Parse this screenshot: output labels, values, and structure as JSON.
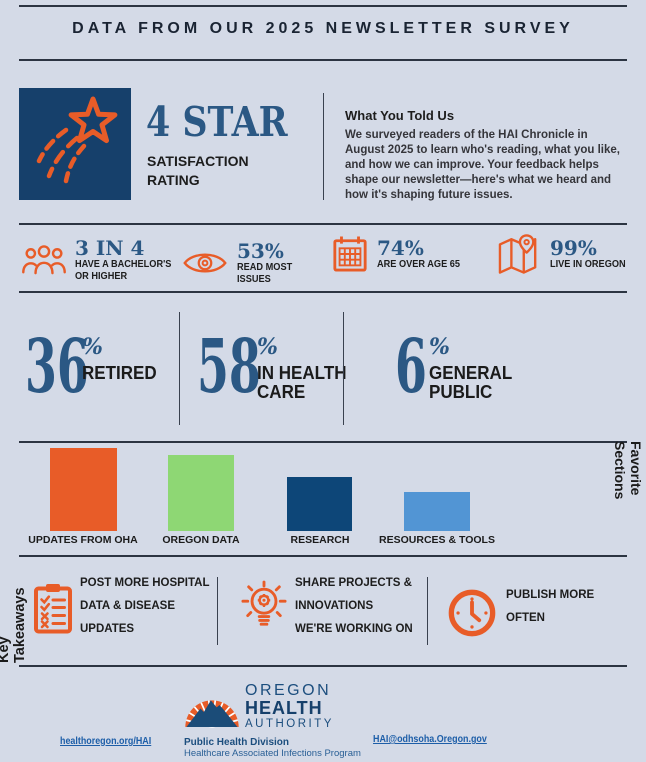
{
  "header": {
    "title": "DATA FROM OUR 2025 NEWSLETTER SURVEY"
  },
  "hero": {
    "rating_value": "4 STAR",
    "rating_label": "SATISFACTION\nRATING",
    "story_title": "What You Told Us",
    "story_body": "We surveyed readers of the HAI Chronicle in August 2025 to learn who's reading, what you like, and how we can improve. Your feedback helps shape our newsletter—here's what we heard and how it's shaping future issues."
  },
  "stats": [
    {
      "icon": "people-group-icon",
      "value": "3 IN 4",
      "label": "HAVE A BACHELOR'S\nOR HIGHER"
    },
    {
      "icon": "eye-icon",
      "value": "53%",
      "label": "READ MOST\nISSUES"
    },
    {
      "icon": "calendar-icon",
      "value": "74%",
      "label": "ARE OVER AGE 65"
    },
    {
      "icon": "map-pin-icon",
      "value": "99%",
      "label": "LIVE IN OREGON"
    }
  ],
  "demographics": [
    {
      "value": "36",
      "unit": "%",
      "label": "RETIRED"
    },
    {
      "value": "58",
      "unit": "%",
      "label": "IN HEALTH\nCARE"
    },
    {
      "value": "6",
      "unit": "%",
      "label": "GENERAL\nPUBLIC"
    }
  ],
  "chart_data": {
    "type": "bar",
    "title": "Favorite Sections",
    "categories": [
      "UPDATES FROM OHA",
      "OREGON DATA",
      "RESEARCH",
      "RESOURCES & TOOLS"
    ],
    "values": [
      100,
      92,
      65,
      47
    ],
    "colors": [
      "#E85C28",
      "#8ED774",
      "#0D4678",
      "#5295D4"
    ],
    "xlabel": "",
    "ylabel": "",
    "grid": false,
    "legend": "none"
  },
  "takeaways": {
    "title": "Key Takeaways",
    "items": [
      {
        "icon": "clipboard-checklist-icon",
        "label": "POST MORE HOSPITAL\nDATA & DISEASE\nUPDATES"
      },
      {
        "icon": "lightbulb-gear-icon",
        "label": "SHARE PROJECTS &\nINNOVATIONS\nWE'RE WORKING ON"
      },
      {
        "icon": "clock-icon",
        "label": "PUBLISH MORE\nOFTEN"
      }
    ]
  },
  "footer": {
    "site_link": "healthoregon.org/HAI",
    "email_link": "HAI@odhsoha.Oregon.gov",
    "org": {
      "line1": "OREGON",
      "line2": "HEALTH",
      "line3": "AUTHORITY"
    },
    "division": "Public Health Division",
    "program": "Healthcare Associated Infections Program"
  },
  "colors": {
    "background": "#D4DAE7",
    "navy": "#16406B",
    "navy_text": "#2B5884",
    "orange": "#E85C28",
    "dark_text": "#1D1D1D",
    "link_blue": "#1D5EA8"
  }
}
